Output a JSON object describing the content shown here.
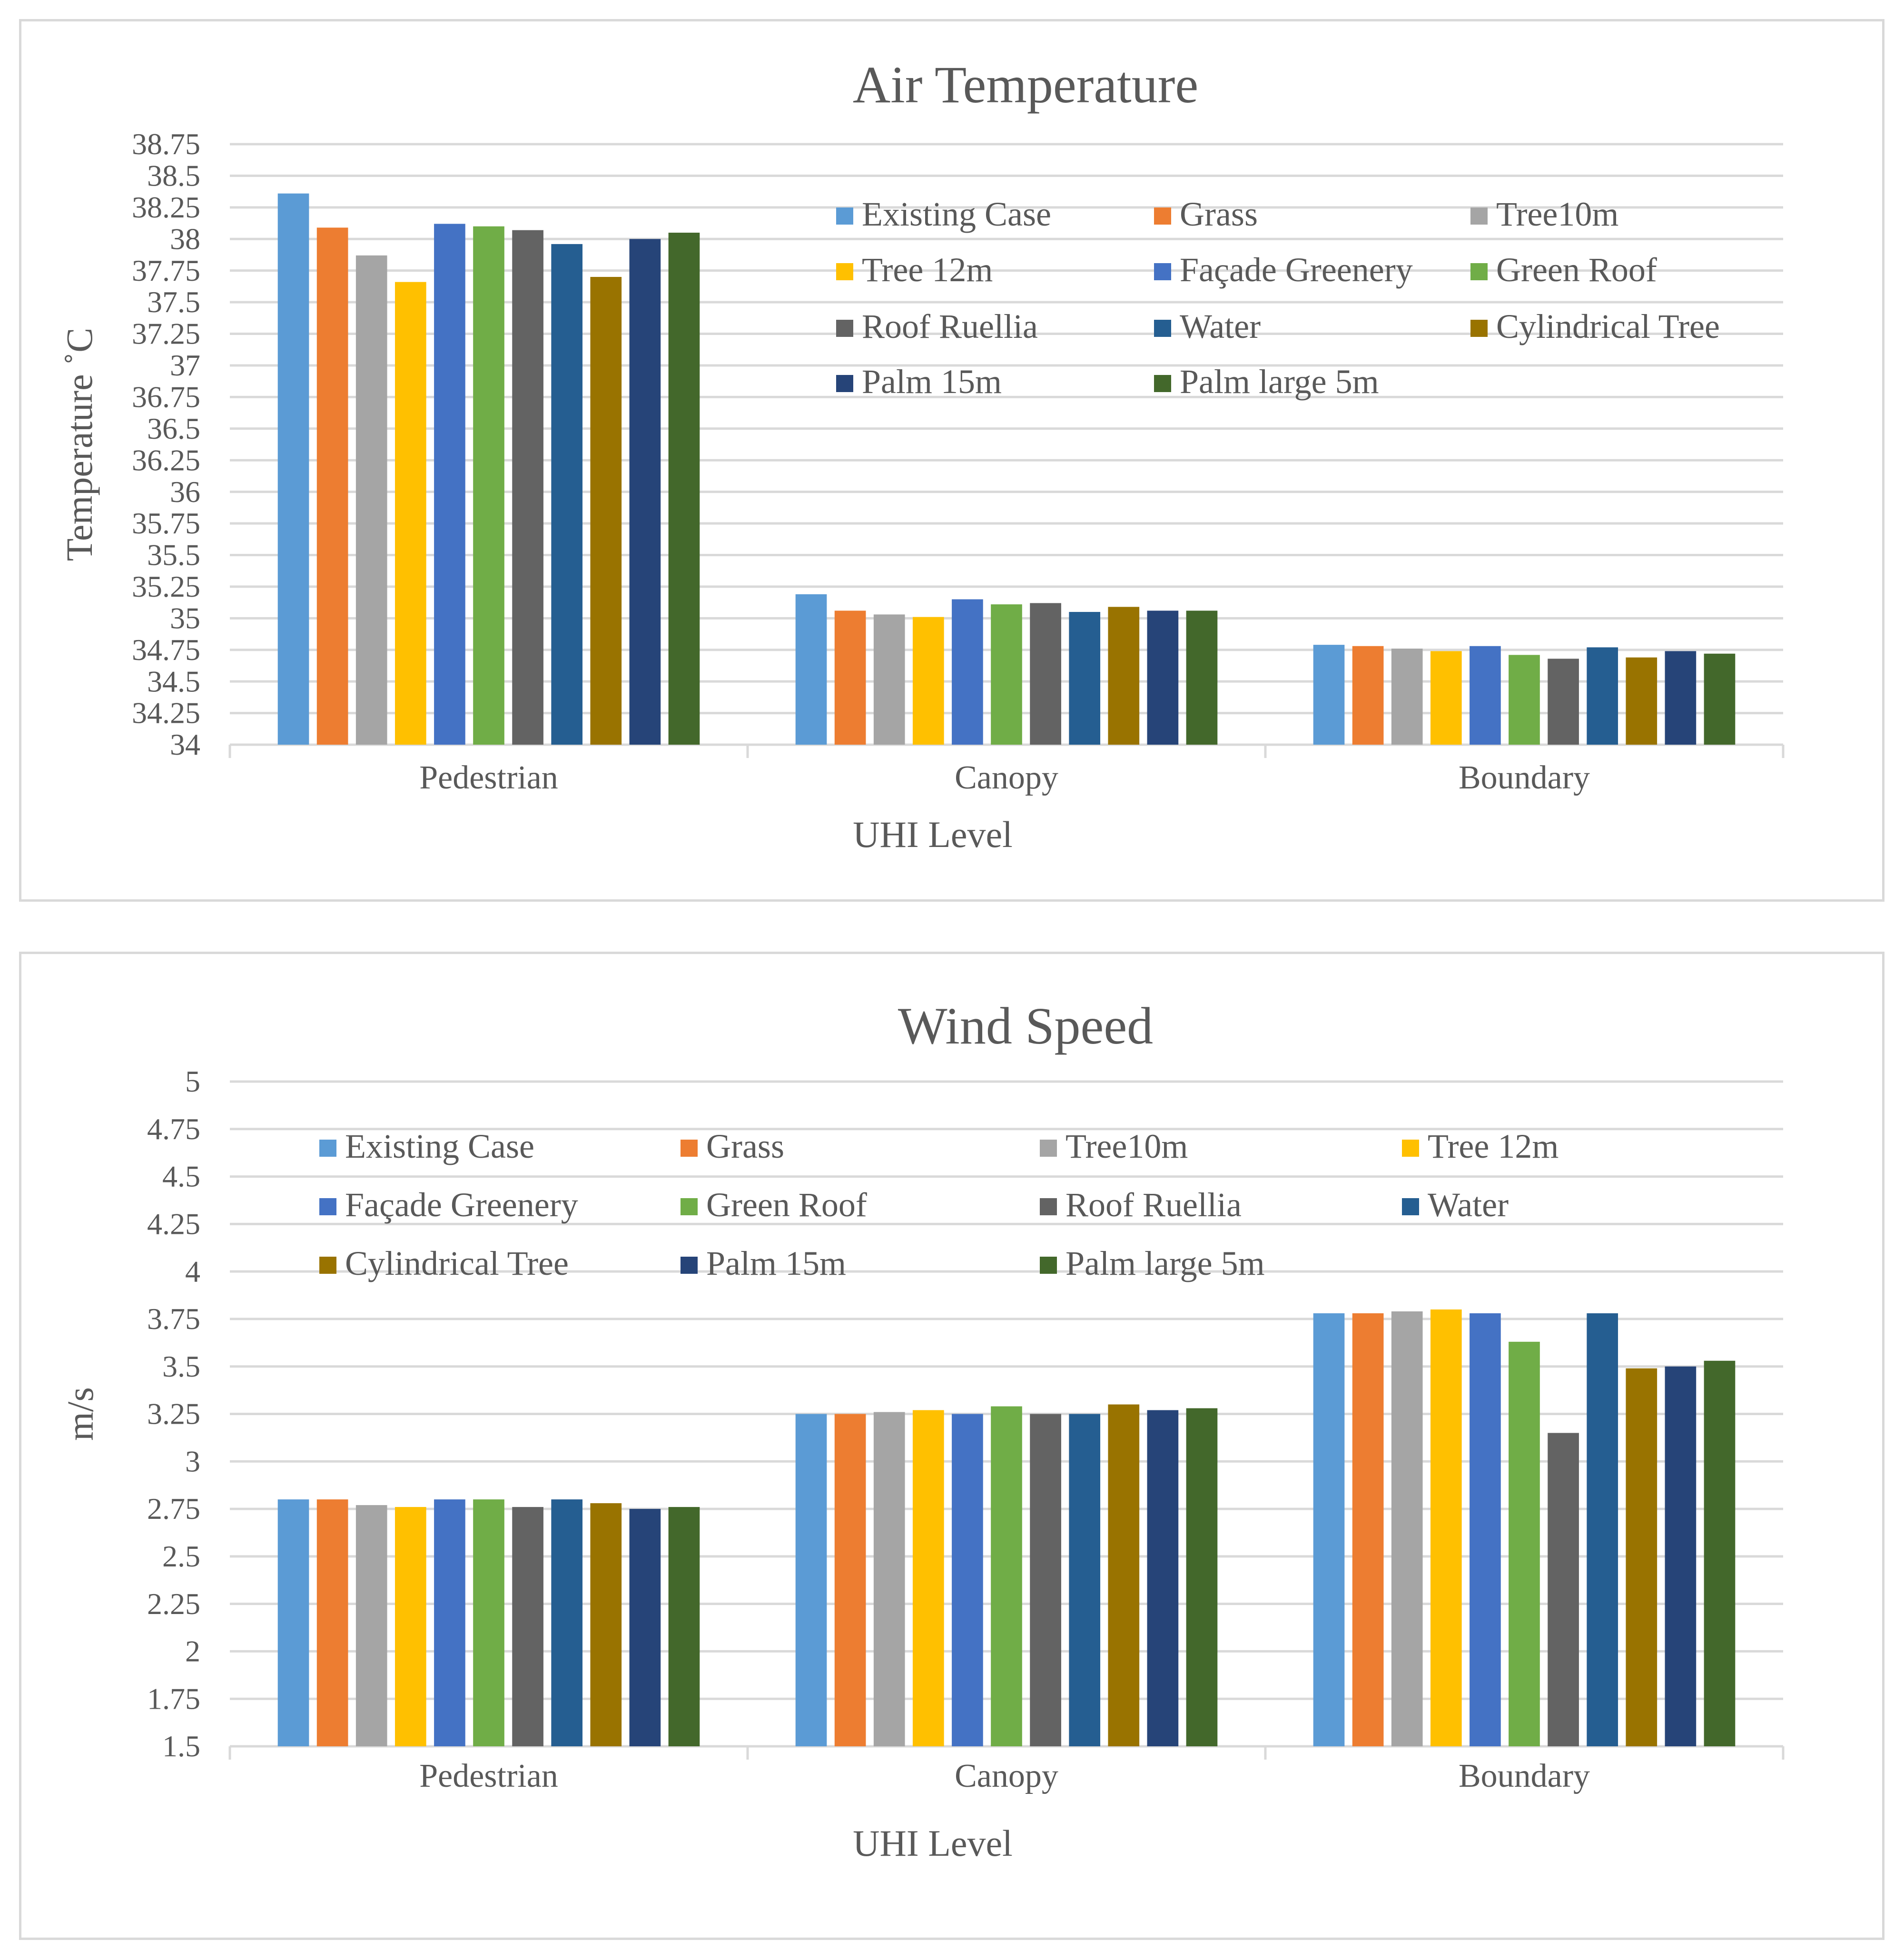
{
  "colors": {
    "Existing Case": "#5b9bd5",
    "Grass": "#ed7d31",
    "Tree10m": "#a5a5a5",
    "Tree 12m": "#ffc000",
    "Façade Greenery": "#4472c4",
    "Green Roof": "#70ad47",
    "Roof Ruellia": "#636363",
    "Water": "#255e91",
    "Cylindrical Tree": "#997300",
    "Palm 15m": "#264478",
    "Palm large 5m": "#43682b"
  },
  "chart_data": [
    {
      "type": "bar",
      "title": "Air Temperature",
      "xlabel": "UHI Level",
      "ylabel": "Temperature ˚C",
      "ylim": [
        34,
        38.75
      ],
      "yticks": [
        "34",
        "34.25",
        "34.5",
        "34.75",
        "35",
        "35.25",
        "35.5",
        "35.75",
        "36",
        "36.25",
        "36.5",
        "36.75",
        "37",
        "37.25",
        "37.5",
        "37.75",
        "38",
        "38.25",
        "38.5",
        "38.75"
      ],
      "grid": true,
      "legend_position": "top-right inside plot, 3 columns",
      "categories": [
        "Pedestrian",
        "Canopy",
        "Boundary"
      ],
      "series": [
        {
          "name": "Existing Case",
          "values": [
            38.36,
            35.19,
            34.79
          ]
        },
        {
          "name": "Grass",
          "values": [
            38.09,
            35.06,
            34.78
          ]
        },
        {
          "name": "Tree10m",
          "values": [
            37.87,
            35.03,
            34.76
          ]
        },
        {
          "name": "Tree 12m",
          "values": [
            37.66,
            35.01,
            34.74
          ]
        },
        {
          "name": "Façade Greenery",
          "values": [
            38.12,
            35.15,
            34.78
          ]
        },
        {
          "name": "Green Roof",
          "values": [
            38.1,
            35.11,
            34.71
          ]
        },
        {
          "name": "Roof Ruellia",
          "values": [
            38.07,
            35.12,
            34.68
          ]
        },
        {
          "name": "Water",
          "values": [
            37.96,
            35.05,
            34.77
          ]
        },
        {
          "name": "Cylindrical Tree",
          "values": [
            37.7,
            35.09,
            34.69
          ]
        },
        {
          "name": "Palm 15m",
          "values": [
            38.0,
            35.06,
            34.74
          ]
        },
        {
          "name": "Palm large 5m",
          "values": [
            38.05,
            35.06,
            34.72
          ]
        }
      ]
    },
    {
      "type": "bar",
      "title": "Wind Speed",
      "xlabel": "UHI Level",
      "ylabel": "m/s",
      "ylim": [
        1.5,
        5
      ],
      "yticks": [
        "1.5",
        "1.75",
        "2",
        "2.25",
        "2.5",
        "2.75",
        "3",
        "3.25",
        "3.5",
        "3.75",
        "4",
        "4.25",
        "4.5",
        "4.75",
        "5"
      ],
      "grid": true,
      "legend_position": "top inside plot, 4 columns",
      "categories": [
        "Pedestrian",
        "Canopy",
        "Boundary"
      ],
      "series": [
        {
          "name": "Existing Case",
          "values": [
            2.8,
            3.25,
            3.78
          ]
        },
        {
          "name": "Grass",
          "values": [
            2.8,
            3.25,
            3.78
          ]
        },
        {
          "name": "Tree10m",
          "values": [
            2.77,
            3.26,
            3.79
          ]
        },
        {
          "name": "Tree 12m",
          "values": [
            2.76,
            3.27,
            3.8
          ]
        },
        {
          "name": "Façade Greenery",
          "values": [
            2.8,
            3.25,
            3.78
          ]
        },
        {
          "name": "Green Roof",
          "values": [
            2.8,
            3.29,
            3.63
          ]
        },
        {
          "name": "Roof Ruellia",
          "values": [
            2.76,
            3.25,
            3.15
          ]
        },
        {
          "name": "Water",
          "values": [
            2.8,
            3.25,
            3.78
          ]
        },
        {
          "name": "Cylindrical Tree",
          "values": [
            2.78,
            3.3,
            3.49
          ]
        },
        {
          "name": "Palm 15m",
          "values": [
            2.75,
            3.27,
            3.5
          ]
        },
        {
          "name": "Palm large 5m",
          "values": [
            2.76,
            3.28,
            3.53
          ]
        }
      ]
    }
  ]
}
